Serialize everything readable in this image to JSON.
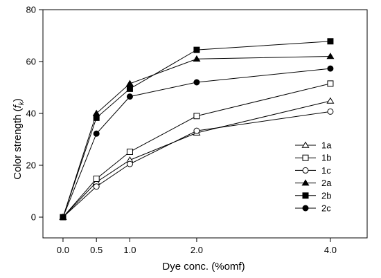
{
  "chart_data": {
    "type": "line",
    "xlabel": "Dye conc. (%omf)",
    "ylabel": "Color strength (",
    "ylabel_italic": "f",
    "ylabel_sub": "k",
    "ylabel_close": ")",
    "x": [
      0.0,
      0.5,
      1.0,
      2.0,
      4.0
    ],
    "x_tick_labels": [
      "0.0",
      "0.5",
      "1.0",
      "2.0",
      "4.0"
    ],
    "xlim": [
      -0.3,
      4.55
    ],
    "ylim": [
      -8,
      80
    ],
    "y_ticks": [
      0,
      20,
      40,
      60,
      80
    ],
    "grid": false,
    "legend_position": "right",
    "series": [
      {
        "name": "1a",
        "marker": "triangle",
        "filled": false,
        "values": [
          0,
          13.5,
          22,
          32.5,
          44.8
        ]
      },
      {
        "name": "1b",
        "marker": "square",
        "filled": false,
        "values": [
          0,
          14.8,
          25.2,
          39,
          51.5
        ]
      },
      {
        "name": "1c",
        "marker": "circle",
        "filled": false,
        "values": [
          0,
          11.8,
          20.5,
          33.3,
          40.7
        ]
      },
      {
        "name": "2a",
        "marker": "triangle",
        "filled": true,
        "values": [
          0,
          40,
          51.5,
          61,
          62
        ]
      },
      {
        "name": "2b",
        "marker": "square",
        "filled": true,
        "values": [
          0,
          38.3,
          49.5,
          64.5,
          67.8
        ]
      },
      {
        "name": "2c",
        "marker": "circle",
        "filled": true,
        "values": [
          0,
          32.2,
          46.5,
          52,
          57.3
        ]
      }
    ]
  }
}
